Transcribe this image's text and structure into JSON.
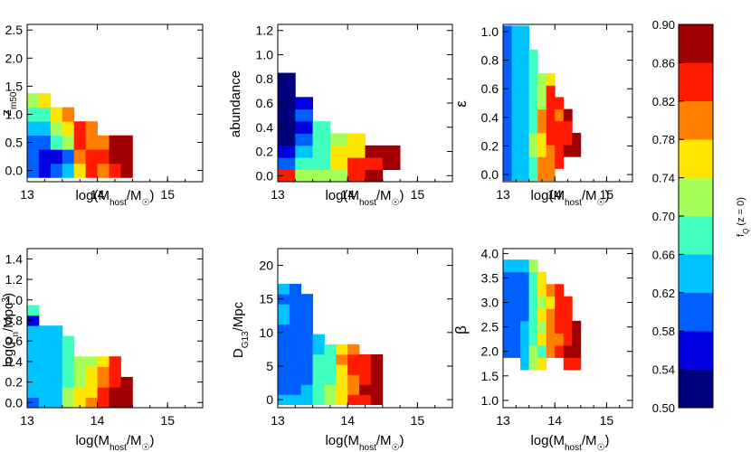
{
  "chart_data": {
    "type": "heatmap",
    "colorbar": {
      "label": "f_Q (z = 0)",
      "range": [
        0.5,
        0.9
      ],
      "ticks": [
        "0.50",
        "0.54",
        "0.58",
        "0.62",
        "0.66",
        "0.70",
        "0.74",
        "0.78",
        "0.82",
        "0.86",
        "0.90"
      ],
      "colors": [
        "#00007f",
        "#0000e0",
        "#0060ff",
        "#00c4ff",
        "#40ffbf",
        "#a6ff59",
        "#ffe600",
        "#ff8000",
        "#ff1a00",
        "#a10000"
      ]
    },
    "panels": [
      {
        "id": "zm50",
        "ylabel": "z_m50",
        "xlabel": "log(M_host/M_☉)",
        "xlim": [
          13,
          15.5
        ],
        "xticks": [
          "13",
          "14",
          "15"
        ],
        "ylim": [
          -0.2,
          2.6
        ],
        "yticks": [
          "0.0",
          "0.5",
          "1.0",
          "1.5",
          "2.0",
          "2.5"
        ],
        "bin_x": 0.1667,
        "bin_y": 0.25,
        "columns": [
          {
            "x": 13.0,
            "y0": -0.125,
            "levels": [
              2,
              2,
              2,
              3,
              4,
              5
            ]
          },
          {
            "x": 13.1667,
            "y0": -0.125,
            "levels": [
              1,
              1,
              2,
              3,
              4,
              6
            ]
          },
          {
            "x": 13.3333,
            "y0": -0.125,
            "levels": [
              2,
              1,
              4,
              5,
              6
            ]
          },
          {
            "x": 13.5,
            "y0": -0.125,
            "levels": [
              3,
              2,
              5,
              6,
              7
            ]
          },
          {
            "x": 13.6667,
            "y0": -0.125,
            "levels": [
              6,
              7,
              8,
              8
            ]
          },
          {
            "x": 13.8333,
            "y0": -0.125,
            "levels": [
              8,
              8,
              7,
              7
            ]
          },
          {
            "x": 14.0,
            "y0": -0.125,
            "levels": [
              7,
              8,
              7
            ]
          },
          {
            "x": 14.1667,
            "y0": -0.125,
            "levels": [
              8,
              9,
              9
            ]
          },
          {
            "x": 14.3333,
            "y0": -0.125,
            "levels": [
              9,
              9,
              9
            ]
          }
        ]
      },
      {
        "id": "abundance",
        "ylabel": "abundance",
        "xlabel": "log(M_host/M_☉)",
        "xlim": [
          13,
          15.5
        ],
        "xticks": [
          "13",
          "14",
          "15"
        ],
        "ylim": [
          -0.05,
          1.25
        ],
        "yticks": [
          "0.0",
          "0.2",
          "0.4",
          "0.6",
          "0.8",
          "1.0",
          "1.2"
        ],
        "bin_x": 0.25,
        "bin_y": 0.1,
        "columns": [
          {
            "x": 13.0,
            "y0": -0.05,
            "levels": [
              8,
              2,
              1,
              0,
              0,
              0,
              0,
              0,
              0
            ]
          },
          {
            "x": 13.25,
            "y0": -0.05,
            "levels": [
              5,
              4,
              3,
              2,
              1,
              2,
              1
            ]
          },
          {
            "x": 13.5,
            "y0": -0.05,
            "levels": [
              5,
              4,
              4,
              4,
              4
            ]
          },
          {
            "x": 13.75,
            "y0": -0.05,
            "levels": [
              5,
              6,
              6,
              5
            ]
          },
          {
            "x": 14.0,
            "y0": -0.05,
            "levels": [
              8,
              8,
              6,
              6
            ]
          },
          {
            "x": 14.25,
            "y0": -0.05,
            "levels": [
              9,
              8,
              9
            ]
          },
          {
            "x": 14.5,
            "y0": 0.05,
            "levels": [
              9,
              9
            ]
          }
        ]
      },
      {
        "id": "epsilon",
        "ylabel": "ε",
        "xlabel": "log(M_host/M_☉)",
        "xlim": [
          13,
          15.5
        ],
        "xticks": [
          "13",
          "14",
          "15"
        ],
        "ylim": [
          -0.05,
          1.05
        ],
        "yticks": [
          "0.0",
          "0.2",
          "0.4",
          "0.6",
          "0.8",
          "1.0"
        ],
        "bin_x": 0.1667,
        "bin_y": 0.0833,
        "columns": [
          {
            "x": 13.0,
            "y0": -0.042,
            "levels": [
              2,
              2,
              2,
              2,
              2,
              2,
              2,
              2,
              2,
              2,
              2,
              2,
              2
            ]
          },
          {
            "x": 13.1667,
            "y0": -0.042,
            "levels": [
              3,
              3,
              3,
              3,
              3,
              3,
              3,
              3,
              3,
              3,
              3,
              3,
              3
            ]
          },
          {
            "x": 13.3333,
            "y0": -0.042,
            "levels": [
              3,
              3,
              3,
              3,
              3,
              3,
              3,
              3,
              3,
              3,
              3,
              3,
              3
            ]
          },
          {
            "x": 13.5,
            "y0": -0.042,
            "levels": [
              4,
              4,
              5,
              5,
              4,
              4,
              4,
              4,
              4,
              4,
              4
            ]
          },
          {
            "x": 13.6667,
            "y0": -0.042,
            "levels": [
              7,
              7,
              6,
              6,
              7,
              7,
              5,
              5,
              5
            ]
          },
          {
            "x": 13.8333,
            "y0": -0.042,
            "levels": [
              7,
              7,
              7,
              8,
              8,
              8,
              8,
              8,
              6
            ]
          },
          {
            "x": 14.0,
            "y0": 0.042,
            "levels": [
              8,
              8,
              8,
              8,
              7,
              8
            ]
          },
          {
            "x": 14.1667,
            "y0": 0.125,
            "levels": [
              9,
              8,
              8,
              9
            ]
          },
          {
            "x": 14.3333,
            "y0": 0.125,
            "levels": [
              9,
              9
            ]
          }
        ]
      },
      {
        "id": "rho",
        "ylabel": "log(ρ_n/Mpc³)",
        "xlabel": "log(M_host/M_☉)",
        "xlim": [
          13,
          15.5
        ],
        "xticks": [
          "13",
          "14",
          "15"
        ],
        "ylim": [
          -0.05,
          1.5
        ],
        "yticks": [
          "0.0",
          "0.2",
          "0.4",
          "0.6",
          "0.8",
          "1.0",
          "1.2",
          "1.4"
        ],
        "bin_x": 0.1667,
        "bin_y": 0.1,
        "columns": [
          {
            "x": 13.0,
            "y0": -0.05,
            "levels": [
              2,
              3,
              3,
              3,
              3,
              3,
              3,
              3,
              1,
              4
            ]
          },
          {
            "x": 13.1667,
            "y0": -0.05,
            "levels": [
              3,
              3,
              3,
              3,
              3,
              3,
              3,
              3
            ]
          },
          {
            "x": 13.3333,
            "y0": -0.05,
            "levels": [
              3,
              3,
              3,
              3,
              3,
              3,
              3,
              3
            ]
          },
          {
            "x": 13.5,
            "y0": -0.05,
            "levels": [
              5,
              5,
              4,
              4,
              4,
              4,
              4
            ]
          },
          {
            "x": 13.6667,
            "y0": -0.05,
            "levels": [
              6,
              6,
              5,
              5,
              5
            ]
          },
          {
            "x": 13.8333,
            "y0": -0.05,
            "levels": [
              7,
              6,
              6,
              6,
              5
            ]
          },
          {
            "x": 14.0,
            "y0": -0.05,
            "levels": [
              8,
              8,
              7,
              7,
              6
            ]
          },
          {
            "x": 14.1667,
            "y0": -0.05,
            "levels": [
              9,
              9,
              8,
              8,
              8
            ]
          },
          {
            "x": 14.3333,
            "y0": -0.05,
            "levels": [
              9,
              9,
              9
            ]
          }
        ]
      },
      {
        "id": "dg13",
        "ylabel": "D_G13/Mpc",
        "xlabel": "log(M_host/M_☉)",
        "xlim": [
          13,
          15.5
        ],
        "xticks": [
          "13",
          "14",
          "15"
        ],
        "ylim": [
          -1.2,
          22.5
        ],
        "yticks": [
          "0",
          "5",
          "10",
          "15",
          "20"
        ],
        "bin_x": 0.1667,
        "bin_y": 1.5,
        "columns": [
          {
            "x": 13.0,
            "y0": -0.75,
            "levels": [
              3,
              2,
              2,
              2,
              2,
              2,
              2,
              2,
              3,
              3,
              2,
              3
            ]
          },
          {
            "x": 13.1667,
            "y0": -0.75,
            "levels": [
              3,
              2,
              2,
              2,
              2,
              2,
              2,
              2,
              2,
              2,
              2,
              2
            ]
          },
          {
            "x": 13.3333,
            "y0": -0.75,
            "levels": [
              3,
              3,
              2,
              2,
              2,
              2,
              2,
              2,
              2,
              2,
              2
            ]
          },
          {
            "x": 13.5,
            "y0": -0.75,
            "levels": [
              4,
              4,
              4,
              4,
              4,
              3,
              3
            ]
          },
          {
            "x": 13.6667,
            "y0": -0.75,
            "levels": [
              5,
              5,
              4,
              4,
              4,
              4
            ]
          },
          {
            "x": 13.8333,
            "y0": -0.75,
            "levels": [
              6,
              6,
              6,
              6,
              7,
              6
            ]
          },
          {
            "x": 14.0,
            "y0": -0.75,
            "levels": [
              8,
              7,
              7,
              8,
              8,
              7
            ]
          },
          {
            "x": 14.1667,
            "y0": -0.75,
            "levels": [
              8,
              9,
              8,
              8,
              8
            ]
          },
          {
            "x": 14.3333,
            "y0": -0.75,
            "levels": [
              9,
              9,
              9,
              9,
              9
            ]
          }
        ]
      },
      {
        "id": "beta",
        "ylabel": "β",
        "xlabel": "log(M_host/M_☉)",
        "xlim": [
          13,
          15.5
        ],
        "xticks": [
          "13",
          "14",
          "15"
        ],
        "ylim": [
          0.85,
          4.1
        ],
        "yticks": [
          "1.0",
          "1.5",
          "2.0",
          "2.5",
          "3.0",
          "3.5",
          "4.0"
        ],
        "bin_x": 0.1667,
        "bin_y": 0.25,
        "columns": [
          {
            "x": 13.0,
            "y0": 1.875,
            "levels": [
              2,
              2,
              2,
              2,
              2,
              2,
              2,
              3
            ]
          },
          {
            "x": 13.1667,
            "y0": 1.875,
            "levels": [
              2,
              2,
              2,
              2,
              2,
              2,
              2,
              3
            ]
          },
          {
            "x": 13.3333,
            "y0": 1.625,
            "levels": [
              3,
              3,
              3,
              3,
              2,
              2,
              2,
              2,
              3
            ]
          },
          {
            "x": 13.5,
            "y0": 1.625,
            "levels": [
              5,
              5,
              4,
              4,
              4,
              4,
              4,
              4,
              5
            ]
          },
          {
            "x": 13.6667,
            "y0": 1.625,
            "levels": [
              6,
              4,
              6,
              5,
              6,
              5,
              6,
              6
            ]
          },
          {
            "x": 13.8333,
            "y0": 1.875,
            "levels": [
              7,
              7,
              7,
              7,
              6,
              7
            ]
          },
          {
            "x": 14.0,
            "y0": 1.875,
            "levels": [
              8,
              7,
              8,
              8,
              8,
              8
            ]
          },
          {
            "x": 14.1667,
            "y0": 1.625,
            "levels": [
              8,
              9,
              8,
              8,
              8,
              8
            ]
          },
          {
            "x": 14.3333,
            "y0": 1.625,
            "levels": [
              8,
              9,
              9,
              9
            ]
          }
        ]
      }
    ]
  }
}
